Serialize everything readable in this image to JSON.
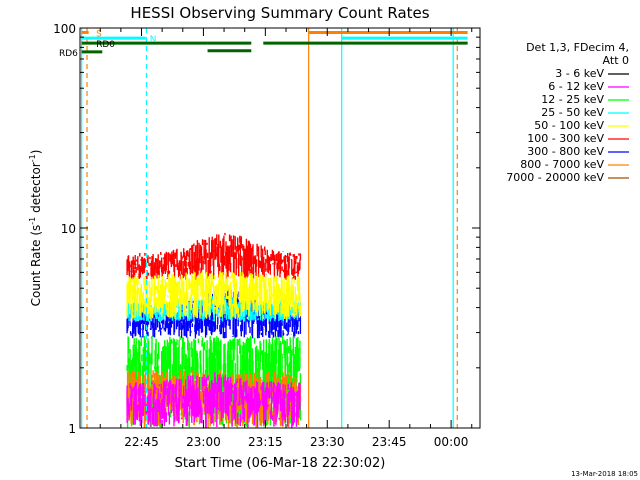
{
  "chart_data": {
    "type": "line",
    "title": "HESSI Observing Summary Count Rates",
    "xlabel": "Start Time (06-Mar-18 22:30:02)",
    "ylabel_main": "Count Rate (s",
    "ylabel_sup1": "-1",
    "ylabel_mid": " detector",
    "ylabel_sup2": "-1",
    "ylabel_end": ")",
    "y_scale": "log",
    "ylim": [
      1,
      100
    ],
    "xlim_minutes": [
      -14.9,
      82
    ],
    "x_tick_minutes": [
      0,
      15,
      30,
      45,
      60,
      75
    ],
    "x_ticks": [
      "22:45",
      "23:00",
      "23:15",
      "23:30",
      "23:45",
      "00:00"
    ],
    "y_ticks": [
      {
        "value": 1,
        "label": "1"
      },
      {
        "value": 10,
        "label": "10"
      },
      {
        "value": 100,
        "label": "100"
      }
    ],
    "legend_header": [
      "Det 1,3, FDecim 4,",
      "Att 0"
    ],
    "legend_position": "right",
    "series": [
      {
        "name": "3 - 6 keV",
        "color": "#000000"
      },
      {
        "name": "6 - 12 keV",
        "color": "#ff00ff"
      },
      {
        "name": "12 - 25 keV",
        "color": "#00ff00"
      },
      {
        "name": "25 - 50 keV",
        "color": "#00ffff"
      },
      {
        "name": "50 - 100 keV",
        "color": "#ffff00"
      },
      {
        "name": "100 - 300 keV",
        "color": "#ff0000"
      },
      {
        "name": "300 - 800 keV",
        "color": "#0000ff"
      },
      {
        "name": "800 - 7000 keV",
        "color": "#ff8000"
      },
      {
        "name": "7000 - 20000 keV",
        "color": "#a05000"
      }
    ],
    "data_window_minutes": [
      -3.5,
      38.5
    ],
    "rate_levels": [
      {
        "band": "100 - 300 keV",
        "color": "#ff0000",
        "low": 5.5,
        "high": 7.5,
        "peak": 9.5,
        "peak_minute": 20
      },
      {
        "band": "300 - 800 keV",
        "color": "#0000ff",
        "low": 2.8,
        "high": 3.9,
        "peak": 5.0,
        "peak_minute": 20
      },
      {
        "band": "25 - 50 keV",
        "color": "#00ffff",
        "low": 3.4,
        "high": 4.3,
        "peak": 4.6,
        "peak_minute": 18
      },
      {
        "band": "50 - 100 keV",
        "color": "#ffff00",
        "low": 3.5,
        "high": 5.8,
        "peak": 6.2,
        "peak_minute": 18
      },
      {
        "band": "12 - 25 keV",
        "color": "#00ff00",
        "low": 1.0,
        "high": 2.9,
        "peak": 2.9,
        "peak_minute": 18
      },
      {
        "band": "800 - 7000 keV",
        "color": "#ff8000",
        "low": 1.0,
        "high": 1.95,
        "peak": 1.95,
        "peak_minute": 18
      },
      {
        "band": "6 - 12 keV",
        "color": "#ff00ff",
        "low": 1.0,
        "high": 1.7,
        "peak": 1.9,
        "peak_minute": 17
      }
    ],
    "flags": [
      {
        "label": "S",
        "color": "#ff8000",
        "value": 95,
        "label_minute": -11,
        "segments": [
          [
            -14.5,
            -12.8
          ],
          [
            40.5,
            79
          ]
        ]
      },
      {
        "label": "N",
        "color": "#00ffff",
        "value": 89,
        "label_minute": 2,
        "segments": [
          [
            -14.5,
            1
          ],
          [
            48.5,
            79
          ]
        ]
      },
      {
        "label": "RD0",
        "color": "#006400",
        "value": 84,
        "label_minute": -11,
        "segments": [
          [
            -14.5,
            16
          ],
          [
            16,
            26.6
          ],
          [
            29.5,
            79
          ]
        ]
      },
      {
        "label": "RD6",
        "color": "#006400",
        "value": 76,
        "label_minute": -20,
        "segments": [
          [
            -14.5,
            -9.5
          ]
        ]
      }
    ],
    "step_gaps": [
      {
        "label": "RD0",
        "color": "#006400",
        "value": 77,
        "segment": [
          16,
          26.6
        ]
      }
    ],
    "vertical_markers": [
      {
        "minute": -14.5,
        "color": "#00ffff",
        "style": "solid"
      },
      {
        "minute": -13.2,
        "color": "#ff8000",
        "style": "dashed"
      },
      {
        "minute": 1.2,
        "color": "#00ffff",
        "style": "dashed"
      },
      {
        "minute": 40.5,
        "color": "#ff8000",
        "style": "solid"
      },
      {
        "minute": 48.5,
        "color": "#00ffff",
        "style": "solid"
      },
      {
        "minute": 75.5,
        "color": "#00ffff",
        "style": "solid"
      },
      {
        "minute": 76.5,
        "color": "#ff8000",
        "style": "dashed"
      }
    ]
  },
  "footer": {
    "date_stamp": "13-Mar-2018 18:05"
  }
}
